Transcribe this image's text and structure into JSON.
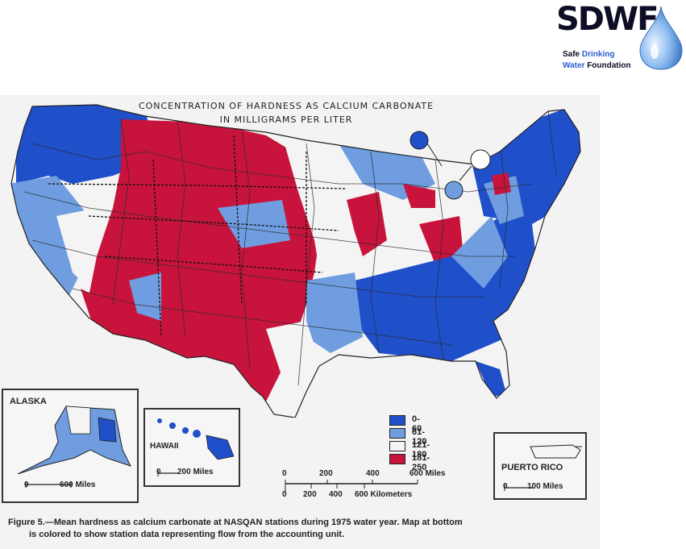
{
  "logo": {
    "acronym": "SDWF",
    "line1_a": "Safe ",
    "line1_b": "Drinking",
    "line2_a": "Water ",
    "line2_b": "Foundation",
    "colors": {
      "dark": "#0d0d26",
      "blue": "#2b5fd0",
      "drop": "#6fa8e6"
    }
  },
  "map": {
    "title_line1": "CONCENTRATION OF HARDNESS AS CALCIUM CARBONATE",
    "title_line2": "IN MILLIGRAMS PER LITER",
    "legend": [
      {
        "label": "0- 60",
        "color": "#1f4fc9"
      },
      {
        "label": "61-120",
        "color": "#6f9de0"
      },
      {
        "label": "121-180",
        "color": "#f4f4f4"
      },
      {
        "label": "181-250",
        "color": "#c8143c"
      }
    ],
    "scale": {
      "miles_ticks": [
        "0",
        "200",
        "400",
        "600 Miles"
      ],
      "km_ticks": [
        "0",
        "200",
        "400",
        "600 Kilometers"
      ]
    },
    "insets": {
      "alaska": {
        "label": "ALASKA",
        "scale_zero": "0",
        "scale_label": "600 Miles"
      },
      "hawaii": {
        "label": "HAWAII",
        "scale_zero": "0",
        "scale_label": "200 Miles"
      },
      "puerto_rico": {
        "label": "PUERTO RICO",
        "scale_zero": "0",
        "scale_label": "100 Miles"
      }
    }
  },
  "caption": {
    "line1": "Figure 5.—Mean hardness as calcium carbonate at NASQAN stations during 1975 water year.  Map at bottom",
    "line2": "is colored to show station data representing flow from the accounting unit."
  }
}
